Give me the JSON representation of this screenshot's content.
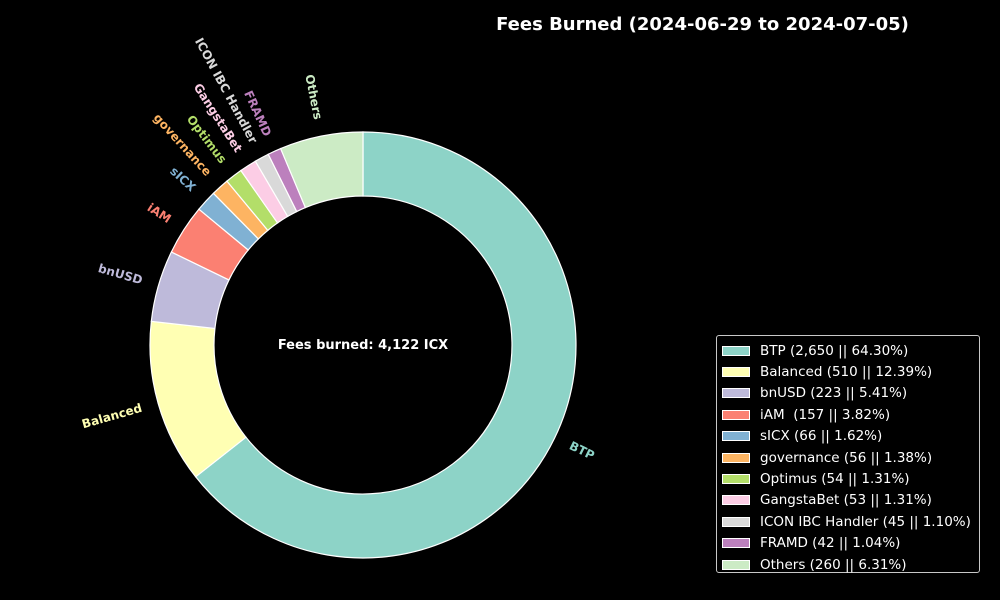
{
  "chart_data": {
    "type": "pie",
    "title": "Fees Burned (2024-06-29 to 2024-07-05)",
    "center_label": "Fees burned: 4,122 ICX",
    "legend_placement": "bottom-right",
    "grid": false,
    "slices": [
      {
        "label": "BTP",
        "value": 2650,
        "percent": 64.3,
        "color": "#8dd3c7",
        "legend": "BTP (2,650 || 64.30%)"
      },
      {
        "label": "Balanced",
        "value": 510,
        "percent": 12.39,
        "color": "#ffffb3",
        "legend": "Balanced (510 || 12.39%)"
      },
      {
        "label": "bnUSD",
        "value": 223,
        "percent": 5.41,
        "color": "#bebada",
        "legend": "bnUSD (223 || 5.41%)"
      },
      {
        "label": "iAM",
        "value": 157,
        "percent": 3.82,
        "color": "#fb8072",
        "legend": "iAM  (157 || 3.82%)"
      },
      {
        "label": "sICX",
        "value": 66,
        "percent": 1.62,
        "color": "#80b1d3",
        "legend": "sICX (66 || 1.62%)"
      },
      {
        "label": "governance",
        "value": 56,
        "percent": 1.38,
        "color": "#fdb462",
        "legend": "governance (56 || 1.38%)"
      },
      {
        "label": "Optimus",
        "value": 54,
        "percent": 1.31,
        "color": "#b3de69",
        "legend": "Optimus (54 || 1.31%)"
      },
      {
        "label": "GangstaBet",
        "value": 53,
        "percent": 1.31,
        "color": "#fccde5",
        "legend": "GangstaBet (53 || 1.31%)"
      },
      {
        "label": "ICON IBC Handler",
        "value": 45,
        "percent": 1.1,
        "color": "#d9d9d9",
        "legend": "ICON IBC Handler (45 || 1.10%)"
      },
      {
        "label": "FRAMD",
        "value": 42,
        "percent": 1.04,
        "color": "#bc80bd",
        "legend": "FRAMD (42 || 1.04%)"
      },
      {
        "label": "Others",
        "value": 260,
        "percent": 6.31,
        "color": "#ccebc5",
        "legend": "Others (260 || 6.31%)"
      }
    ]
  }
}
